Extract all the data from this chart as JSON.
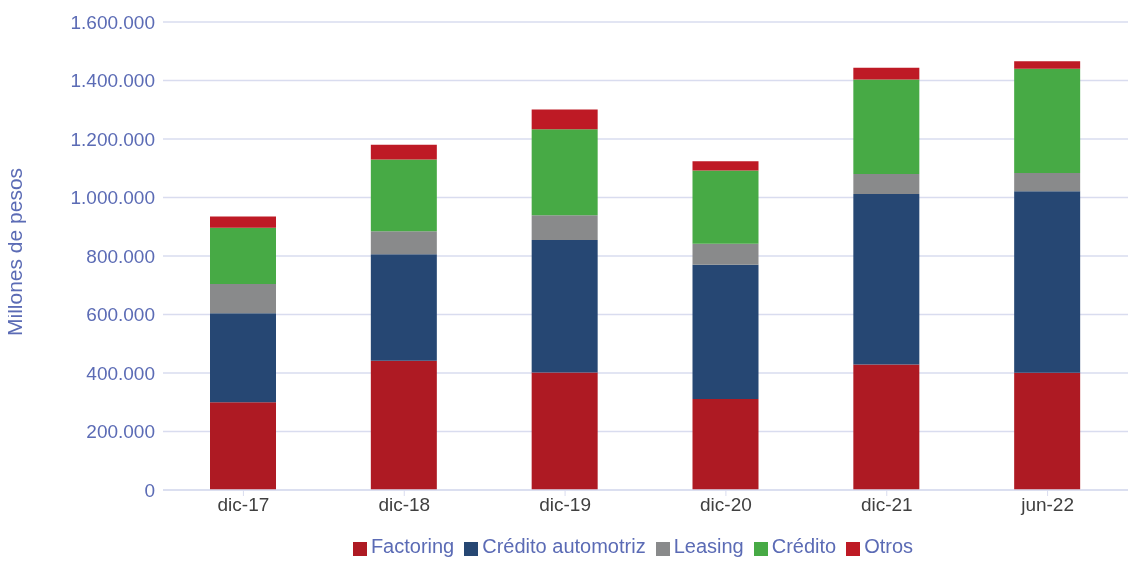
{
  "chart_data": {
    "type": "bar",
    "stacked": true,
    "ylabel": "Millones de pesos",
    "categories": [
      "dic-17",
      "dic-18",
      "dic-19",
      "dic-20",
      "dic-21",
      "jun-22"
    ],
    "series": [
      {
        "name": "Factoring",
        "color": "#ae1a23",
        "values": [
          300000,
          442000,
          402000,
          311000,
          429000,
          401000
        ]
      },
      {
        "name": "Crédito automotriz",
        "color": "#264773",
        "values": [
          304000,
          364000,
          453000,
          459000,
          583000,
          620000
        ]
      },
      {
        "name": "Leasing",
        "color": "#898a8b",
        "values": [
          100000,
          79000,
          84000,
          72000,
          68000,
          63000
        ]
      },
      {
        "name": "Crédito",
        "color": "#47aa45",
        "values": [
          193000,
          245000,
          294000,
          250000,
          323000,
          356000
        ]
      },
      {
        "name": "Otros",
        "color": "#be1a25",
        "values": [
          38000,
          50000,
          68000,
          32000,
          41000,
          26000
        ]
      }
    ],
    "ylim": [
      0,
      1600000
    ],
    "yticks": [
      0,
      {
        "value": 200000,
        "label": "200.000"
      },
      {
        "value": 400000,
        "label": "400.000"
      },
      {
        "value": 600000,
        "label": "600.000"
      },
      {
        "value": 800000,
        "label": "800.000"
      },
      {
        "value": 1000000,
        "label": "1.000.000"
      },
      {
        "value": 1200000,
        "label": "1.200.000"
      },
      {
        "value": 1400000,
        "label": "1.400.000"
      },
      {
        "value": 1600000,
        "label": "1.600.000"
      }
    ],
    "grid": "y",
    "legend": "bottom"
  }
}
